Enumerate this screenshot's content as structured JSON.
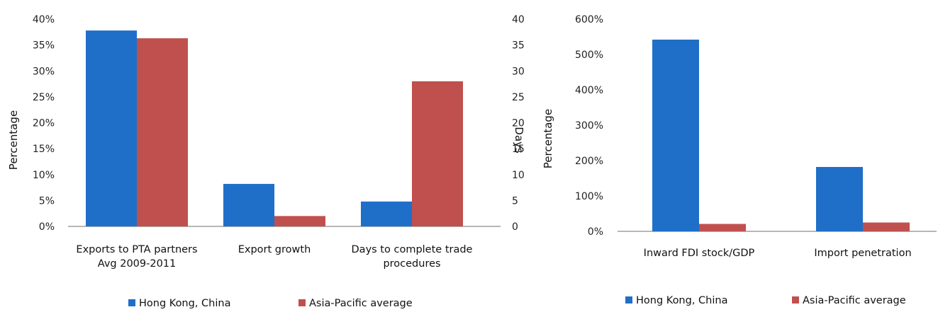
{
  "colors": {
    "hong_kong": "#1f6fc8",
    "asia_pacific": "#c0504d",
    "axis": "#8c8c8c"
  },
  "chart_data": [
    {
      "type": "bar",
      "categories": [
        [
          "Exports to PTA partners",
          "Avg 2009-2011"
        ],
        [
          "Export growth"
        ],
        [
          "Days to complete trade",
          "procedures"
        ]
      ],
      "ylabel": "Percentage",
      "y2label": "Days",
      "ylim": [
        0,
        40
      ],
      "y_ticks": [
        "0%",
        "5%",
        "10%",
        "15%",
        "20%",
        "25%",
        "30%",
        "35%",
        "40%"
      ],
      "y2lim": [
        0,
        40
      ],
      "y2_ticks": [
        "0",
        "5",
        "10",
        "15",
        "20",
        "25",
        "30",
        "35",
        "40"
      ],
      "legend_position": "bottom",
      "series": [
        {
          "name": "Hong Kong, China",
          "values": [
            37.8,
            8.2,
            4.8
          ],
          "axes": [
            "left",
            "left",
            "right"
          ]
        },
        {
          "name": "Asia-Pacific average",
          "values": [
            36.3,
            2.0,
            28.0
          ],
          "axes": [
            "left",
            "left",
            "right"
          ]
        }
      ]
    },
    {
      "type": "bar",
      "categories": [
        [
          "Inward FDI stock/GDP"
        ],
        [
          "Import penetration"
        ]
      ],
      "ylabel": "Percentage",
      "ylim": [
        0,
        600
      ],
      "y_ticks": [
        "0%",
        "100%",
        "200%",
        "300%",
        "400%",
        "500%",
        "600%"
      ],
      "legend_position": "bottom",
      "series": [
        {
          "name": "Hong Kong, China",
          "values": [
            542,
            182
          ]
        },
        {
          "name": "Asia-Pacific average",
          "values": [
            21,
            25
          ]
        }
      ]
    }
  ]
}
